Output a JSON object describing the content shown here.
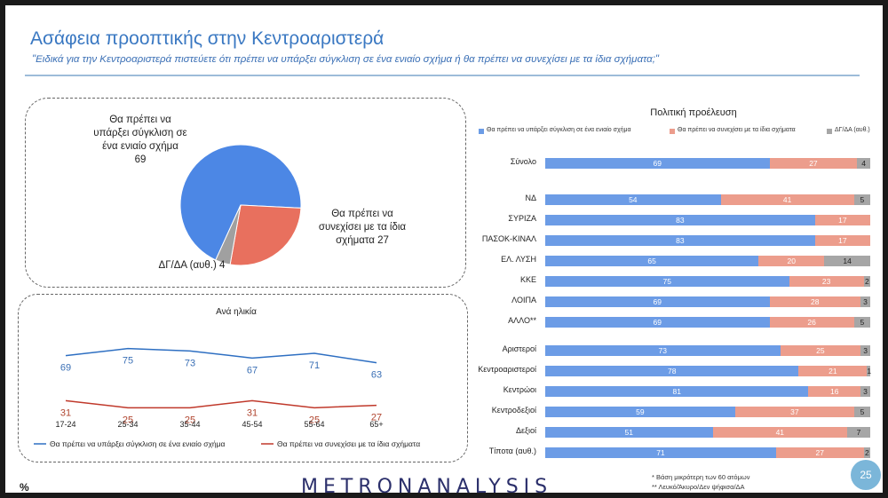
{
  "title": "Ασάφεια προοπτικής στην Κεντροαριστερά",
  "subtitle": "\"Ειδικά για την Κεντροαριστερά πιστεύετε ότι πρέπει να υπάρξει σύγκλιση σε ένα ενιαίο σχήμα ή θα πρέπει να συνεχίσει με τα ίδια σχήματα;\"",
  "pie": {
    "label_convergence": "Θα πρέπει να υπάρξει σύγκλιση σε ένα ενιαίο σχήμα",
    "value_convergence": "69",
    "label_continue": "Θα πρέπει να συνεχίσει με τα ίδια σχήματα",
    "value_continue": "27",
    "label_dk": "ΔΓ/ΔΑ (αυθ.)",
    "value_dk": "4"
  },
  "line": {
    "title": "Ανά ηλικία"
  },
  "bars": {
    "title": "Πολιτική προέλευση",
    "legend": [
      "Θα πρέπει να υπάρξει σύγκλιση σε ένα ενιαίο σχήμα",
      "Θα πρέπει να συνεχίσει με τα ίδια σχήματα",
      "ΔΓ/ΔΑ (αυθ.)"
    ]
  },
  "colors": {
    "blue": "#6c9ce6",
    "salmon": "#ec9d8c",
    "grey": "#a6a6a6",
    "line_blue": "#2e6fc2",
    "line_red": "#c0392b",
    "pie_blue": "#4c87e5",
    "pie_red": "#e8705e",
    "pie_grey": "#a0a0a0"
  },
  "footer": {
    "percent": "%",
    "logo": "METRONANALYSIS",
    "note1": "* Βάση μικρότερη των 60 ατόμων",
    "note2": "** Λευκό/Άκυρο/Δεν ψήφισα/ΔΑ",
    "page": "25"
  },
  "chart_data": [
    {
      "type": "pie",
      "categories": [
        "Θα πρέπει να υπάρξει σύγκλιση σε ένα ενιαίο σχήμα",
        "Θα πρέπει να συνεχίσει με τα ίδια σχήματα",
        "ΔΓ/ΔΑ (αυθ.)"
      ],
      "values": [
        69,
        27,
        4
      ]
    },
    {
      "type": "line",
      "title": "Ανά ηλικία",
      "categories": [
        "17-24",
        "25-34",
        "35-44",
        "45-54",
        "55-64",
        "65+"
      ],
      "series": [
        {
          "name": "Θα πρέπει να υπάρξει σύγκλιση σε ένα ενιαίο σχήμα",
          "values": [
            69,
            75,
            73,
            67,
            71,
            63
          ]
        },
        {
          "name": "Θα πρέπει να συνεχίσει με τα ίδια σχήματα",
          "values": [
            31,
            25,
            25,
            31,
            25,
            27
          ]
        }
      ],
      "legend": "bottom"
    },
    {
      "type": "bar",
      "stacked": true,
      "orientation": "horizontal",
      "title": "Πολιτική προέλευση",
      "groups": [
        {
          "rows": [
            {
              "label": "Σύνολο",
              "values": [
                69,
                27,
                4
              ]
            }
          ]
        },
        {
          "rows": [
            {
              "label": "ΝΔ",
              "values": [
                54,
                41,
                5
              ]
            },
            {
              "label": "ΣΥΡΙΖΑ",
              "values": [
                83,
                17,
                null
              ]
            },
            {
              "label": "ΠΑΣΟΚ-ΚΙΝΑΛ",
              "values": [
                83,
                17,
                null
              ]
            },
            {
              "label": "ΕΛ. ΛΥΣΗ",
              "values": [
                65,
                20,
                14
              ]
            },
            {
              "label": "ΚΚΕ",
              "values": [
                75,
                23,
                2
              ]
            },
            {
              "label": "ΛΟΙΠΑ",
              "values": [
                69,
                28,
                3
              ]
            },
            {
              "label": "ΑΛΛΟ**",
              "values": [
                69,
                26,
                5
              ]
            }
          ]
        },
        {
          "rows": [
            {
              "label": "Αριστεροί",
              "values": [
                73,
                25,
                3
              ]
            },
            {
              "label": "Κεντροαριστεροί",
              "values": [
                78,
                21,
                1
              ]
            },
            {
              "label": "Κεντρώοι",
              "values": [
                81,
                16,
                3
              ]
            },
            {
              "label": "Κεντροδεξιοί",
              "values": [
                59,
                37,
                5
              ]
            },
            {
              "label": "Δεξιοί",
              "values": [
                51,
                41,
                7
              ]
            },
            {
              "label": "Τίποτα (αυθ.)",
              "values": [
                71,
                27,
                2
              ]
            }
          ]
        }
      ],
      "series": [
        "Θα πρέπει να υπάρξει σύγκλιση σε ένα ενιαίο σχήμα",
        "Θα πρέπει να συνεχίσει με τα ίδια σχήματα",
        "ΔΓ/ΔΑ (αυθ.)"
      ],
      "legend": "top"
    }
  ]
}
